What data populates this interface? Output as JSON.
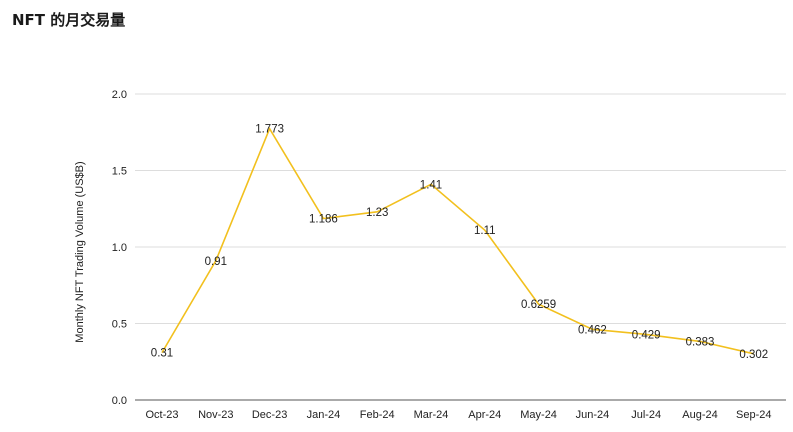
{
  "title": "NFT 的月交易量",
  "chart_data": {
    "type": "line",
    "title": "NFT 的月交易量",
    "xlabel": "",
    "ylabel": "Monthly NFT Trading Volume (US$B)",
    "categories": [
      "Oct-23",
      "Nov-23",
      "Dec-23",
      "Jan-24",
      "Feb-24",
      "Mar-24",
      "Apr-24",
      "May-24",
      "Jun-24",
      "Jul-24",
      "Aug-24",
      "Sep-24"
    ],
    "series": [
      {
        "values": [
          0.31,
          0.91,
          1.773,
          1.186,
          1.23,
          1.41,
          1.11,
          0.6259,
          0.462,
          0.429,
          0.383,
          0.302
        ]
      }
    ],
    "data_labels": [
      "0.31",
      "0.91",
      "1.773",
      "1.186",
      "1.23",
      "1.41",
      "1.11",
      "0.6259",
      "0.462",
      "0.429",
      "0.383",
      "0.302"
    ],
    "ylim": [
      0,
      2.0
    ],
    "yticks": [
      "0.0",
      "0.5",
      "1.0",
      "1.5",
      "2.0"
    ],
    "grid": true,
    "line_color": "#f2c01e",
    "grid_color": "#dddddd"
  }
}
